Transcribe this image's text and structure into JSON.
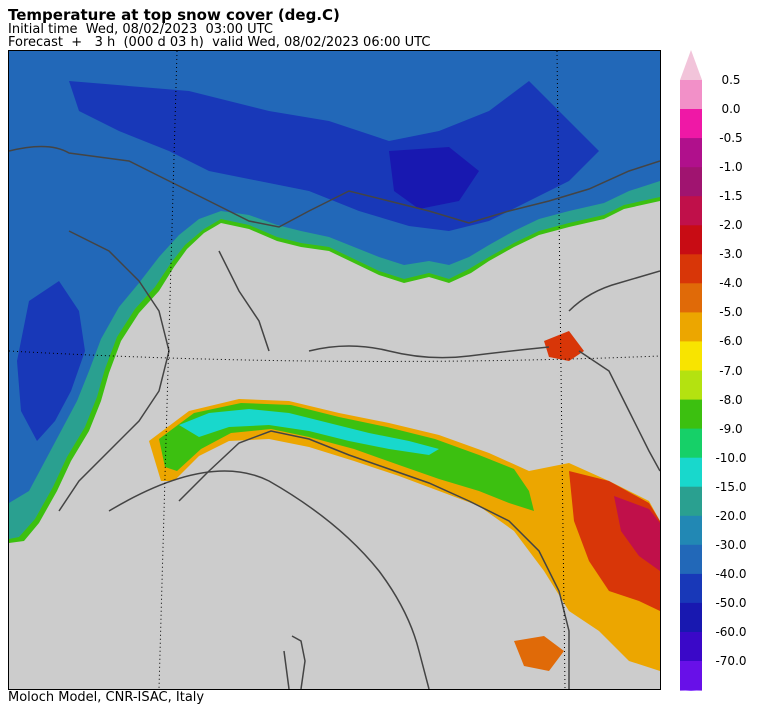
{
  "header": {
    "title": "Temperature at top snow cover (deg.C)",
    "initial_line": "Initial time  Wed, 08/02/2023  03:00 UTC",
    "forecast_line": "Forecast  +   3 h  (000 d 03 h)  valid Wed, 08/02/2023 06:00 UTC"
  },
  "colorbar": {
    "levels": [
      {
        "label": "0.5",
        "color": "#f290c8"
      },
      {
        "label": "0.0",
        "color": "#ef18a6"
      },
      {
        "label": "-0.5",
        "color": "#b0108c"
      },
      {
        "label": "-1.0",
        "color": "#a01470"
      },
      {
        "label": "-1.5",
        "color": "#c0104a"
      },
      {
        "label": "-2.0",
        "color": "#c80c14"
      },
      {
        "label": "-3.0",
        "color": "#d83608"
      },
      {
        "label": "-4.0",
        "color": "#e06a08"
      },
      {
        "label": "-5.0",
        "color": "#eca600"
      },
      {
        "label": "-6.0",
        "color": "#f8e400"
      },
      {
        "label": "-7.0",
        "color": "#b4e210"
      },
      {
        "label": "-8.0",
        "color": "#3cc010"
      },
      {
        "label": "-9.0",
        "color": "#16d068"
      },
      {
        "label": "-10.0",
        "color": "#18d8cc"
      },
      {
        "label": "-15.0",
        "color": "#2aa090"
      },
      {
        "label": "-20.0",
        "color": "#2288b4"
      },
      {
        "label": "-30.0",
        "color": "#2268b8"
      },
      {
        "label": "-40.0",
        "color": "#1838b8"
      },
      {
        "label": "-50.0",
        "color": "#1818b0"
      },
      {
        "label": "-60.0",
        "color": "#3a08c8"
      },
      {
        "label": "-70.0",
        "color": "#6810e8"
      }
    ],
    "upper_extension_color": "#f2c4da",
    "lower_extension_color": "#8a40ff",
    "bar_fill_color": "#9030f0"
  },
  "map": {
    "no_snow_color": "#cccccc",
    "border_color": "#444444",
    "graticule": "dotted"
  },
  "footer": {
    "credit": "Moloch Model, CNR-ISAC, Italy"
  }
}
